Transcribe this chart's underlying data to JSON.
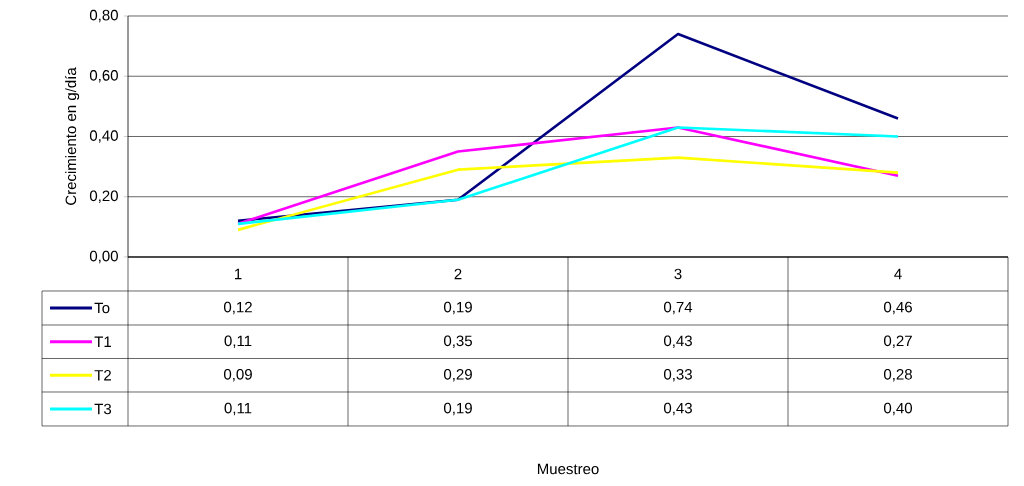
{
  "chart_data": {
    "type": "line",
    "ylabel": "Crecimiento en g/día",
    "categories": [
      "1",
      "2",
      "3",
      "4"
    ],
    "series": [
      {
        "name": "To",
        "color": "#000080",
        "values": [
          0.12,
          0.19,
          0.74,
          0.46
        ],
        "value_labels": [
          "0,12",
          "0,19",
          "0,74",
          "0,46"
        ]
      },
      {
        "name": "T1",
        "color": "#ff00ff",
        "values": [
          0.11,
          0.35,
          0.43,
          0.27
        ],
        "value_labels": [
          "0,11",
          "0,35",
          "0,43",
          "0,27"
        ]
      },
      {
        "name": "T2",
        "color": "#ffff00",
        "values": [
          0.09,
          0.29,
          0.33,
          0.28
        ],
        "value_labels": [
          "0,09",
          "0,29",
          "0,33",
          "0,28"
        ]
      },
      {
        "name": "T3",
        "color": "#00ffff",
        "values": [
          0.11,
          0.19,
          0.43,
          0.4
        ],
        "value_labels": [
          "0,11",
          "0,19",
          "0,43",
          "0,40"
        ]
      }
    ],
    "ylim": [
      0,
      0.8
    ],
    "yticks": [
      {
        "value": 0,
        "label": "0,00"
      },
      {
        "value": 0.2,
        "label": "0,20"
      },
      {
        "value": 0.4,
        "label": "0,40"
      },
      {
        "value": 0.6,
        "label": "0,60"
      },
      {
        "value": 0.8,
        "label": "0,80"
      }
    ],
    "annotations": [
      "Muestreo"
    ],
    "grid": "y",
    "legend": "bottom left",
    "marker": "none",
    "line_style": "solid"
  }
}
